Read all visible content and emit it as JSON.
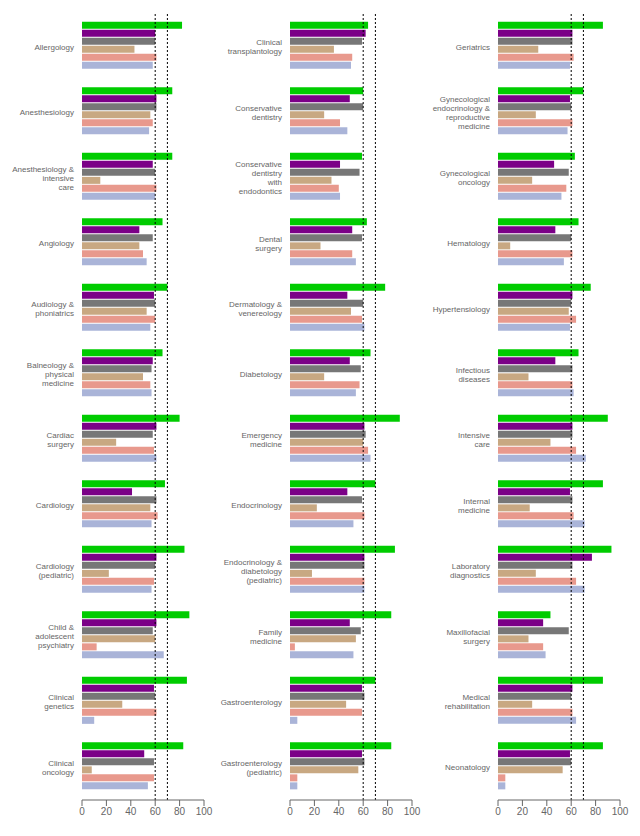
{
  "chart_data": [
    {
      "type": "bar",
      "orientation": "horizontal",
      "grid": false,
      "categories": [
        "Allergology",
        "Anesthesiology",
        "Anesthesiology &\nintensive\ncare",
        "Angiology",
        "Audiology &\nphoniatrics",
        "Balneology &\nphysical\nmedicine",
        "Cardiac\nsurgery",
        "Cardiology",
        "Cardiology\n(pediatric)",
        "Child &\nadolescent\npsychiatry",
        "Clinical\ngenetics",
        "Clinical\noncology"
      ],
      "series": [
        {
          "color": "#00cc00",
          "values": [
            82,
            74,
            74,
            66,
            70,
            66,
            80,
            68,
            84,
            88,
            86,
            83
          ]
        },
        {
          "color": "#7b0087",
          "values": [
            60,
            61,
            58,
            47,
            59,
            58,
            61,
            41,
            61,
            61,
            59,
            51
          ]
        },
        {
          "color": "#777777",
          "values": [
            60,
            61,
            60,
            58,
            60,
            57,
            58,
            61,
            60,
            58,
            60,
            59
          ]
        },
        {
          "color": "#c8a882",
          "values": [
            43,
            56,
            15,
            47,
            53,
            50,
            28,
            56,
            22,
            60,
            33,
            8
          ]
        },
        {
          "color": "#e8998d",
          "values": [
            61,
            58,
            61,
            50,
            60,
            56,
            59,
            62,
            59,
            12,
            61,
            59
          ]
        },
        {
          "color": "#aab4d8",
          "values": [
            58,
            55,
            60,
            53,
            56,
            57,
            61,
            57,
            57,
            67,
            10,
            54
          ]
        }
      ],
      "xlim": [
        0,
        100
      ],
      "xticks": [
        0,
        20,
        40,
        60,
        80,
        100
      ],
      "vlines": [
        60,
        70
      ]
    },
    {
      "type": "bar",
      "orientation": "horizontal",
      "grid": false,
      "categories": [
        "Clinical\ntransplantology",
        "Conservative\ndentistry",
        "Conservative\ndentistry\nwith\nendodontics",
        "Dental\nsurgery",
        "Dermatology &\nvenereology",
        "Diabetology",
        "Emergency\nmedicine",
        "Endocrinology",
        "Endocrinology &\ndiabetology\n(pediatric)",
        "Family\nmedicine",
        "Gastroenterology",
        "Gastroenterology\n(pediatric)"
      ],
      "series": [
        {
          "color": "#00cc00",
          "values": [
            64,
            60,
            59,
            63,
            78,
            66,
            90,
            70,
            86,
            83,
            70,
            83
          ]
        },
        {
          "color": "#7b0087",
          "values": [
            62,
            49,
            41,
            51,
            47,
            49,
            61,
            47,
            61,
            49,
            59,
            59
          ]
        },
        {
          "color": "#777777",
          "values": [
            59,
            60,
            57,
            59,
            60,
            58,
            62,
            59,
            61,
            58,
            61,
            61
          ]
        },
        {
          "color": "#c8a882",
          "values": [
            36,
            28,
            34,
            25,
            50,
            28,
            60,
            22,
            18,
            54,
            46,
            56
          ]
        },
        {
          "color": "#e8998d",
          "values": [
            51,
            41,
            40,
            51,
            59,
            57,
            64,
            61,
            61,
            4,
            59,
            6
          ]
        },
        {
          "color": "#aab4d8",
          "values": [
            50,
            47,
            41,
            54,
            61,
            54,
            66,
            52,
            61,
            52,
            6,
            6
          ]
        }
      ],
      "xlim": [
        0,
        100
      ],
      "xticks": [
        0,
        20,
        40,
        60,
        80,
        100
      ],
      "vlines": [
        60,
        70
      ]
    },
    {
      "type": "bar",
      "orientation": "horizontal",
      "grid": false,
      "categories": [
        "Geriatrics",
        "Gynecological\nendocrinology &\nreproductive\nmedicine",
        "Gynecological\noncology",
        "Hematology",
        "Hypertensiology",
        "Infectious\ndiseases",
        "Intensive\ncare",
        "Internal\nmedicine",
        "Laboratory\ndiagnostics",
        "Maxillofacial\nsurgery",
        "Medical\nrehabilitation",
        "Neonatology"
      ],
      "series": [
        {
          "color": "#00cc00",
          "values": [
            86,
            70,
            63,
            66,
            76,
            66,
            90,
            86,
            93,
            43,
            86,
            86
          ]
        },
        {
          "color": "#7b0087",
          "values": [
            61,
            59,
            46,
            47,
            61,
            47,
            61,
            59,
            77,
            37,
            61,
            59
          ]
        },
        {
          "color": "#777777",
          "values": [
            61,
            60,
            58,
            60,
            60,
            61,
            61,
            61,
            61,
            58,
            60,
            60
          ]
        },
        {
          "color": "#c8a882",
          "values": [
            33,
            31,
            28,
            10,
            58,
            25,
            43,
            26,
            31,
            25,
            28,
            53
          ]
        },
        {
          "color": "#e8998d",
          "values": [
            62,
            61,
            56,
            61,
            64,
            61,
            64,
            62,
            64,
            37,
            61,
            6
          ]
        },
        {
          "color": "#aab4d8",
          "values": [
            59,
            57,
            52,
            54,
            59,
            62,
            72,
            71,
            71,
            39,
            64,
            6
          ]
        }
      ],
      "xlim": [
        0,
        100
      ],
      "xticks": [
        0,
        20,
        40,
        60,
        80,
        100
      ],
      "vlines": [
        60,
        70
      ]
    }
  ]
}
